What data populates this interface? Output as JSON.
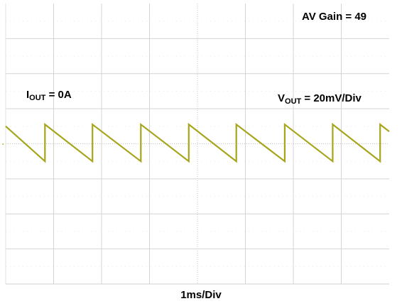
{
  "annotations": {
    "gain": "AV Gain = 49",
    "iout_main": "I",
    "iout_sub": "OUT",
    "iout_val": " = 0A",
    "vout_main": "V",
    "vout_sub": "OUT",
    "vout_val": " = 20mV/Div"
  },
  "chart_data": {
    "type": "line",
    "title": "",
    "xlabel": "1ms/Div",
    "ylabel": "",
    "x_divisions": 8,
    "y_divisions": 8,
    "grid": true,
    "xlim": [
      0,
      8
    ],
    "ylim": [
      -4,
      4
    ],
    "series": [
      {
        "name": "",
        "color": "#a7a51c",
        "x": [
          0.0,
          0.82,
          0.82,
          1.81,
          1.81,
          2.82,
          2.82,
          3.82,
          3.82,
          4.81,
          4.81,
          5.82,
          5.82,
          6.82,
          6.82,
          7.81,
          7.81,
          8.0
        ],
        "y": [
          0.5,
          -0.5,
          0.55,
          -0.5,
          0.55,
          -0.5,
          0.55,
          -0.5,
          0.55,
          -0.5,
          0.55,
          -0.5,
          0.55,
          -0.5,
          0.55,
          -0.5,
          0.55,
          0.35
        ]
      }
    ]
  }
}
